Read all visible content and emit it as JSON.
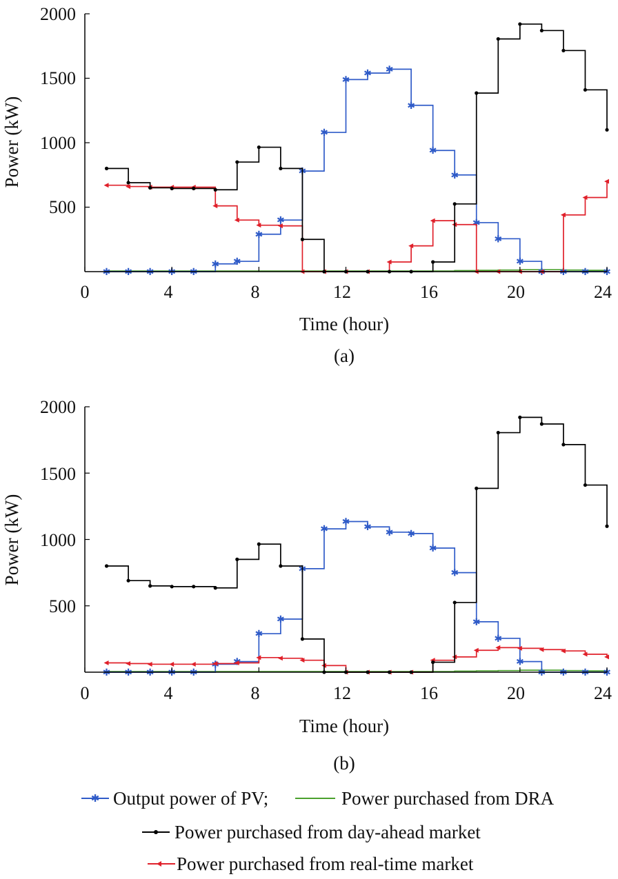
{
  "colors": {
    "pv": "#2f5bc8",
    "dra": "#4aa02c",
    "dam": "#000000",
    "rtm": "#e0202a"
  },
  "legend": {
    "pv": "Output power of PV;",
    "dra": "Power purchased from DRA",
    "dam": "Power purchased from day-ahead market",
    "rtm": "Power purchased from real-time market"
  },
  "chart_data": [
    {
      "type": "line",
      "step": "post",
      "title": "(a)",
      "xlabel": "Time (hour)",
      "ylabel": "Power (kW)",
      "xlim": [
        0,
        24
      ],
      "ylim": [
        0,
        2000
      ],
      "xticks": [
        0,
        4,
        8,
        12,
        16,
        20,
        24
      ],
      "yticks": [
        500,
        1000,
        1500,
        2000
      ],
      "x": [
        1,
        2,
        3,
        4,
        5,
        6,
        7,
        8,
        9,
        10,
        11,
        12,
        13,
        14,
        15,
        16,
        17,
        18,
        19,
        20,
        21,
        22,
        23,
        24
      ],
      "series": [
        {
          "key": "pv",
          "name": "Output power of PV",
          "marker": "star",
          "values": [
            0,
            0,
            0,
            0,
            0,
            60,
            80,
            290,
            400,
            780,
            1080,
            1490,
            1540,
            1570,
            1290,
            940,
            750,
            380,
            255,
            80,
            0,
            0,
            0,
            0
          ]
        },
        {
          "key": "dra",
          "name": "Power purchased from DRA",
          "marker": "none",
          "values": [
            5,
            5,
            5,
            5,
            5,
            5,
            5,
            5,
            5,
            5,
            5,
            5,
            5,
            5,
            5,
            5,
            8,
            10,
            12,
            15,
            15,
            12,
            10,
            10
          ]
        },
        {
          "key": "dam",
          "name": "Power purchased from day-ahead market",
          "marker": "dot",
          "values": [
            800,
            690,
            650,
            645,
            645,
            635,
            850,
            965,
            800,
            250,
            0,
            0,
            0,
            0,
            0,
            75,
            525,
            1385,
            1805,
            1920,
            1870,
            1715,
            1410,
            1100
          ]
        },
        {
          "key": "rtm",
          "name": "Power purchased from real-time market",
          "marker": "arrow",
          "values": [
            670,
            660,
            655,
            655,
            655,
            510,
            400,
            360,
            355,
            0,
            0,
            0,
            0,
            75,
            200,
            395,
            365,
            0,
            0,
            0,
            0,
            440,
            575,
            700
          ]
        }
      ]
    },
    {
      "type": "line",
      "step": "post",
      "title": "(b)",
      "xlabel": "Time (hour)",
      "ylabel": "Power (kW)",
      "xlim": [
        0,
        24
      ],
      "ylim": [
        0,
        2000
      ],
      "xticks": [
        0,
        4,
        8,
        12,
        16,
        20,
        24
      ],
      "yticks": [
        500,
        1000,
        1500,
        2000
      ],
      "x": [
        1,
        2,
        3,
        4,
        5,
        6,
        7,
        8,
        9,
        10,
        11,
        12,
        13,
        14,
        15,
        16,
        17,
        18,
        19,
        20,
        21,
        22,
        23,
        24
      ],
      "series": [
        {
          "key": "pv",
          "name": "Output power of PV",
          "marker": "star",
          "values": [
            0,
            0,
            0,
            0,
            0,
            60,
            80,
            290,
            400,
            780,
            1080,
            1135,
            1095,
            1055,
            1045,
            935,
            750,
            380,
            255,
            80,
            0,
            0,
            0,
            0
          ]
        },
        {
          "key": "dra",
          "name": "Power purchased from DRA",
          "marker": "none",
          "values": [
            5,
            5,
            5,
            5,
            5,
            5,
            5,
            5,
            5,
            5,
            5,
            5,
            5,
            5,
            5,
            5,
            8,
            10,
            12,
            15,
            15,
            12,
            10,
            10
          ]
        },
        {
          "key": "dam",
          "name": "Power purchased from day-ahead market",
          "marker": "dot",
          "values": [
            800,
            690,
            650,
            645,
            645,
            635,
            850,
            965,
            800,
            250,
            0,
            0,
            0,
            0,
            0,
            75,
            525,
            1385,
            1805,
            1920,
            1870,
            1715,
            1410,
            1100
          ]
        },
        {
          "key": "rtm",
          "name": "Power purchased from real-time market",
          "marker": "arrow",
          "values": [
            70,
            65,
            60,
            60,
            60,
            65,
            70,
            110,
            105,
            90,
            50,
            0,
            0,
            0,
            0,
            90,
            115,
            165,
            185,
            180,
            170,
            160,
            135,
            115
          ]
        }
      ]
    }
  ]
}
